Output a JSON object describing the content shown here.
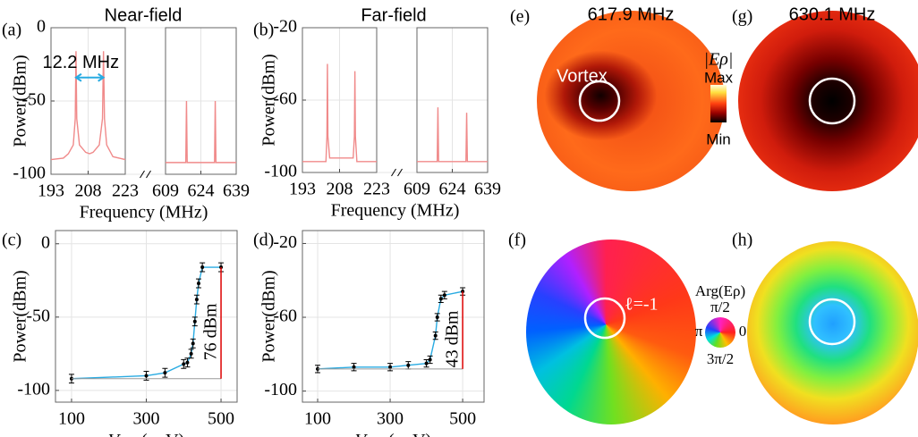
{
  "chart_data": [
    {
      "type": "spectrum",
      "panel_label": "(a)",
      "title": "Near-field",
      "xlabel": "Frequency (MHz)",
      "ylabel": "Power(dBm)",
      "xlim": [
        [
          193,
          223
        ],
        [
          609,
          639
        ]
      ],
      "xticks": [
        193,
        208,
        223,
        609,
        624,
        639
      ],
      "ylim": [
        -100,
        0
      ],
      "yticks": [
        -100,
        -50,
        0
      ],
      "grid": true,
      "series": [
        {
          "color": "#f08a8a",
          "x": [
            193,
            198,
            200,
            202,
            202.8,
            203.1,
            203.4,
            204.5,
            207,
            208.6,
            210,
            212.5,
            213.8,
            214.2,
            214.6,
            215.5,
            218,
            223
          ],
          "values": [
            -90,
            -89,
            -86,
            -80,
            -62,
            -16,
            -62,
            -80,
            -85,
            -86,
            -85,
            -80,
            -62,
            -16,
            -62,
            -80,
            -88,
            -90
          ]
        },
        {
          "color": "#f08a8a",
          "x": [
            609,
            617.6,
            617.9,
            618.2,
            629.8,
            630.1,
            630.4,
            639
          ],
          "values": [
            -92,
            -92,
            -50,
            -92,
            -92,
            -50,
            -92,
            -92
          ]
        }
      ],
      "annotation": "12.2 MHz"
    },
    {
      "type": "spectrum",
      "panel_label": "(b)",
      "title": "Far-field",
      "xlabel": "Frequency (MHz)",
      "ylabel": "Power(dBm)",
      "xlim": [
        [
          193,
          223
        ],
        [
          609,
          639
        ]
      ],
      "xticks": [
        193,
        208,
        223,
        609,
        624,
        639
      ],
      "ylim": [
        -100,
        -20
      ],
      "yticks": [
        -100,
        -60,
        -20
      ],
      "grid": true,
      "series": [
        {
          "color": "#f08a8a",
          "x": [
            193,
            202.5,
            202.9,
            203.1,
            203.3,
            204,
            213.5,
            214,
            214.2,
            214.4,
            215,
            223
          ],
          "values": [
            -94,
            -94,
            -80,
            -40,
            -80,
            -92,
            -92,
            -80,
            -44,
            -80,
            -94,
            -94
          ]
        },
        {
          "color": "#f08a8a",
          "x": [
            609,
            617.6,
            617.9,
            618.2,
            629.8,
            630.1,
            630.4,
            639
          ],
          "values": [
            -94,
            -94,
            -64,
            -94,
            -94,
            -67,
            -94,
            -94
          ]
        }
      ]
    },
    {
      "type": "errorbar",
      "panel_label": "(c)",
      "ylabel": "Power(dBm)",
      "xlabel": {
        "symbol": "V",
        "subscript": "mod",
        "unit": "( mV)"
      },
      "xlim": [
        57,
        543
      ],
      "xticks": [
        100,
        300,
        500
      ],
      "ylim": [
        -108,
        9
      ],
      "yticks": [
        -100,
        -50,
        0
      ],
      "grid": true,
      "series": [
        {
          "color": "#29abe2",
          "x": [
            100,
            300,
            350,
            400,
            410,
            420,
            425,
            430,
            435,
            440,
            450,
            500
          ],
          "values": [
            -92,
            -90,
            -88,
            -82,
            -81,
            -75,
            -68,
            -53,
            -38,
            -27,
            -16,
            -16
          ],
          "errors": [
            3,
            3,
            3,
            3,
            3,
            3,
            3,
            3,
            3,
            3,
            3,
            3
          ]
        }
      ],
      "annotation": "76 dBm"
    },
    {
      "type": "errorbar",
      "panel_label": "(d)",
      "ylabel": "Power(dBm)",
      "xlabel": {
        "symbol": "V",
        "subscript": "mod",
        "unit": "( mV)"
      },
      "xlim": [
        58,
        559
      ],
      "xticks": [
        100,
        300,
        500
      ],
      "ylim": [
        -106,
        -13
      ],
      "yticks": [
        -100,
        -60,
        -20
      ],
      "grid": true,
      "series": [
        {
          "color": "#29abe2",
          "x": [
            100,
            200,
            300,
            350,
            400,
            410,
            425,
            430,
            440,
            450,
            500
          ],
          "values": [
            -88,
            -87,
            -87,
            -86,
            -85,
            -83,
            -70,
            -60,
            -50,
            -48,
            -46
          ],
          "errors": [
            2,
            2,
            2,
            2,
            2,
            2,
            2,
            2,
            2,
            2,
            2
          ]
        }
      ],
      "annotation": "43 dBm"
    }
  ],
  "images": [
    {
      "panel_label": "(e)",
      "title": "617.9 MHz",
      "annotation": "Vortex"
    },
    {
      "panel_label": "(g)",
      "title": "630.1 MHz"
    },
    {
      "panel_label": "(f)",
      "annotation": "ℓ=-1"
    },
    {
      "panel_label": "(h)"
    }
  ],
  "colorbars": {
    "amplitude": {
      "label": "|Eρ|",
      "max": "Max",
      "min": "Min"
    },
    "phase": {
      "label": "Arg(Eρ)",
      "top": "π/2",
      "left": "π",
      "right": "0",
      "bottom": "3π/2"
    }
  }
}
